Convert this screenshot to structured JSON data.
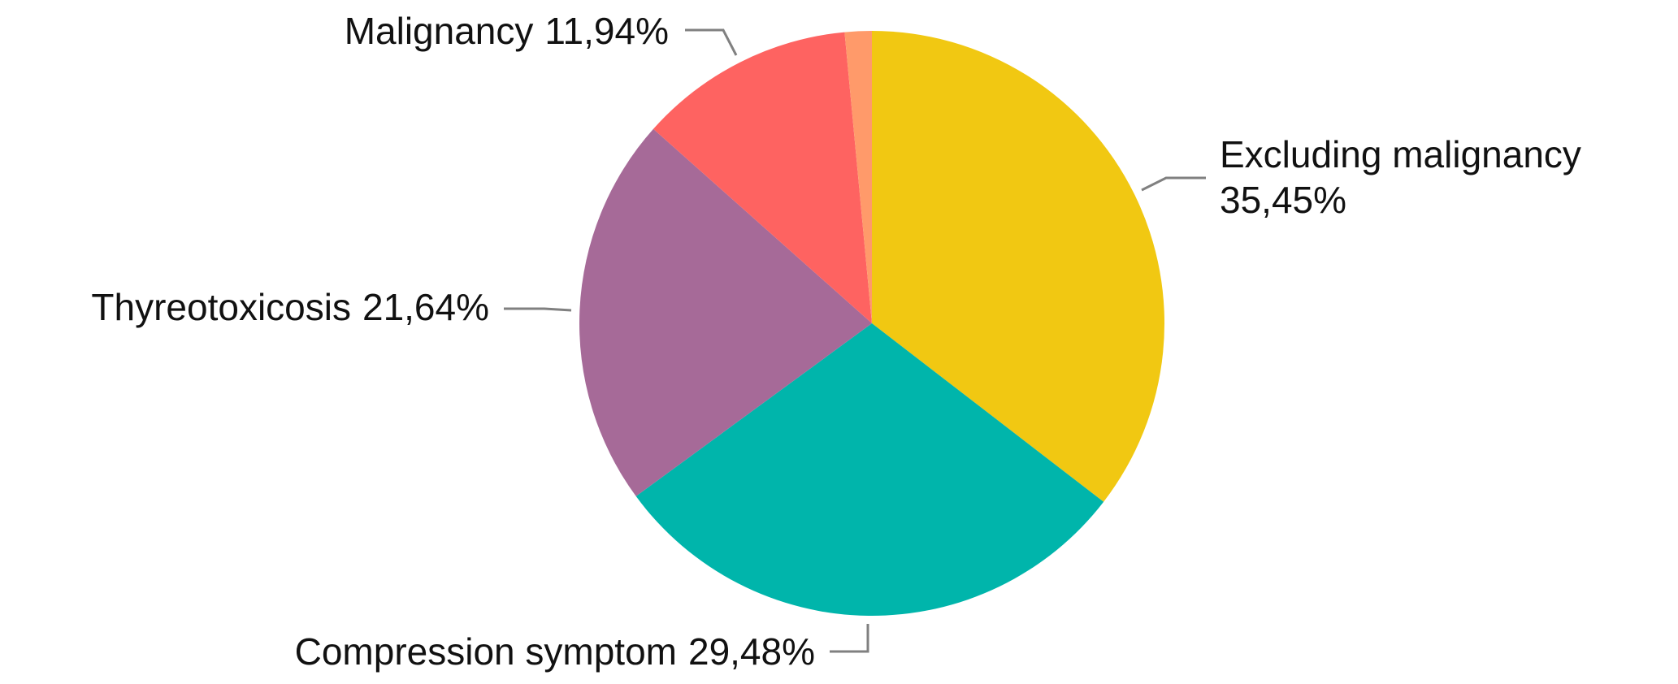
{
  "chart_data": {
    "type": "pie",
    "categories": [
      "Excluding malignancy",
      "Compression symptom",
      "Thyreotoxicosis",
      "Malignancy",
      null
    ],
    "values": [
      35.45,
      29.48,
      21.64,
      11.94,
      1.49
    ],
    "value_labels": [
      "35,45%",
      "29,48%",
      "21,64%",
      "11,94%",
      null
    ],
    "colors": [
      "#f1c812",
      "#00b5ab",
      "#a66a98",
      "#fe6361",
      "#ff9a6a"
    ]
  }
}
